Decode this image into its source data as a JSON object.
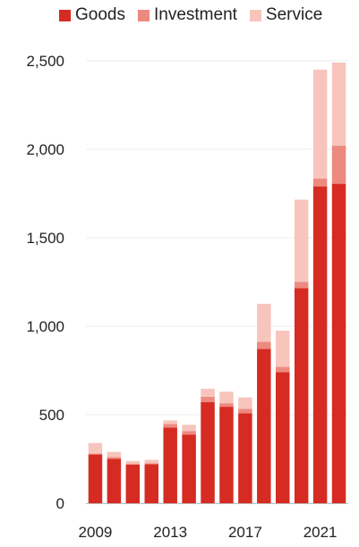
{
  "chart_data": {
    "type": "bar",
    "stacked": true,
    "categories": [
      "2009",
      "2010",
      "2011",
      "2012",
      "2013",
      "2014",
      "2015",
      "2016",
      "2017",
      "2018",
      "2019",
      "2020",
      "2021",
      "2022"
    ],
    "series": [
      {
        "name": "Goods",
        "color": "#d62b22",
        "values": [
          275,
          250,
          218,
          220,
          428,
          388,
          572,
          545,
          508,
          872,
          740,
          1215,
          1790,
          1805
        ]
      },
      {
        "name": "Investment",
        "color": "#ec8a7f",
        "values": [
          5,
          10,
          6,
          5,
          20,
          20,
          30,
          20,
          25,
          40,
          30,
          35,
          45,
          215
        ]
      },
      {
        "name": "Service",
        "color": "#f7c5bc",
        "values": [
          60,
          30,
          15,
          20,
          20,
          35,
          45,
          65,
          65,
          215,
          205,
          465,
          615,
          470
        ]
      }
    ],
    "x_tick_labels": [
      "2009",
      "2013",
      "2017",
      "2021"
    ],
    "y_ticks": [
      0,
      500,
      1000,
      1500,
      2000,
      2500
    ],
    "y_tick_labels": [
      "0",
      "500",
      "1,000",
      "1,500",
      "2,000",
      "2,500"
    ],
    "ylim": [
      0,
      2500
    ],
    "grid": "horizontal",
    "legend_position": "top"
  }
}
